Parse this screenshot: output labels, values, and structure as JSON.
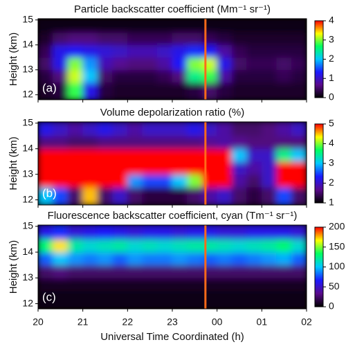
{
  "chart_data": [
    {
      "type": "heatmap",
      "title": "Particle backscatter coefficient (Mm⁻¹ sr⁻¹)",
      "label": "(a)",
      "ylabel": "Height (km)",
      "xlim": [
        20,
        26
      ],
      "ylim": [
        11.8,
        15.05
      ],
      "yticks": [
        12,
        13,
        14,
        15
      ],
      "xbins": [
        20,
        20.333,
        20.667,
        21,
        21.333,
        21.667,
        22,
        22.333,
        22.667,
        23,
        23.333,
        23.667,
        24,
        24.333,
        24.667,
        25,
        25.333,
        25.667,
        26
      ],
      "ybins": [
        12,
        12.5,
        13,
        13.5,
        14,
        14.5,
        15
      ],
      "z": [
        [
          0.2,
          0.3,
          2.8,
          1.2,
          0.3,
          0.2,
          0.2,
          0.2,
          0.2,
          0.2,
          0.3,
          0.5,
          0.3,
          0.2,
          0.2,
          0.2,
          0.2,
          0.2
        ],
        [
          0.3,
          0.6,
          3.2,
          2.0,
          0.5,
          0.3,
          0.3,
          0.3,
          0.4,
          0.6,
          2.5,
          2.8,
          0.8,
          0.3,
          0.3,
          0.3,
          0.4,
          0.3
        ],
        [
          0.5,
          1.2,
          3.0,
          1.8,
          0.9,
          0.7,
          0.6,
          0.6,
          0.8,
          1.3,
          3.0,
          3.2,
          1.2,
          0.5,
          0.4,
          0.4,
          0.5,
          0.4
        ],
        [
          0.4,
          1.2,
          1.3,
          1.2,
          1.1,
          1.0,
          0.9,
          0.9,
          1.0,
          1.2,
          1.4,
          1.3,
          0.8,
          0.4,
          0.3,
          0.3,
          0.3,
          0.3
        ],
        [
          0.2,
          0.5,
          0.6,
          0.6,
          0.5,
          0.5,
          0.4,
          0.4,
          0.4,
          0.5,
          0.5,
          0.4,
          0.3,
          0.2,
          0.2,
          0.2,
          0.2,
          0.2
        ],
        [
          0.1,
          0.1,
          0.1,
          0.1,
          0.1,
          0.1,
          0.1,
          0.1,
          0.1,
          0.1,
          0.1,
          0.1,
          0.1,
          0.1,
          0.1,
          0.1,
          0.1,
          0.1
        ]
      ],
      "zlim": [
        0,
        4
      ],
      "zticks": [
        0,
        1,
        2,
        3,
        4
      ],
      "colormap": [
        "#000000",
        "#5a0a8c",
        "#1a1aff",
        "#00c8ff",
        "#00ff60",
        "#ffff00",
        "#ff0000"
      ],
      "vline": 23.74,
      "vline_color": "#ff6a1a"
    },
    {
      "type": "heatmap",
      "title": "Volume depolarization ratio (%)",
      "label": "(b)",
      "ylabel": "Height (km)",
      "xlim": [
        20,
        26
      ],
      "ylim": [
        11.8,
        15.05
      ],
      "yticks": [
        12,
        13,
        14,
        15
      ],
      "xbins": [
        20,
        20.333,
        20.667,
        21,
        21.333,
        21.667,
        22,
        22.333,
        22.667,
        23,
        23.333,
        23.667,
        24,
        24.333,
        24.667,
        25,
        25.333,
        25.667,
        26
      ],
      "ybins": [
        12,
        12.5,
        13,
        13.5,
        14,
        14.5,
        15
      ],
      "z": [
        [
          3,
          2.5,
          1.5,
          4.5,
          1.5,
          2,
          1.5,
          1.3,
          1.3,
          1.3,
          1.5,
          1.8,
          2.0,
          1.5,
          1.3,
          1.5,
          2.5,
          1.5
        ],
        [
          5,
          5,
          5,
          5,
          5,
          5,
          2.8,
          2.5,
          2.5,
          3,
          4,
          5,
          5,
          1.8,
          1.5,
          2,
          5,
          5
        ],
        [
          5,
          5,
          5,
          5,
          5,
          5,
          5,
          5,
          5,
          5,
          5,
          5,
          5,
          2,
          1.8,
          2,
          5,
          5
        ],
        [
          5,
          5,
          5,
          5,
          5,
          5,
          5,
          5,
          5,
          5,
          5,
          5,
          5,
          3,
          2,
          2,
          3.5,
          3
        ],
        [
          1.6,
          1.6,
          1.5,
          1.5,
          1.6,
          1.6,
          1.6,
          1.6,
          1.6,
          1.6,
          1.6,
          1.7,
          1.8,
          1.7,
          1.6,
          1.6,
          1.6,
          1.6
        ],
        [
          2.2,
          2.0,
          1.8,
          2.0,
          2.2,
          2.0,
          1.8,
          2.0,
          2.0,
          2.0,
          2.2,
          2.0,
          1.8,
          1.5,
          1.5,
          1.6,
          1.8,
          2.0
        ]
      ],
      "zlim": [
        1,
        5
      ],
      "zticks": [
        1,
        2,
        3,
        4,
        5
      ],
      "colormap": [
        "#000000",
        "#5a0a8c",
        "#1a1aff",
        "#00c8ff",
        "#00ff60",
        "#ffff00",
        "#ff0000"
      ],
      "vline": 23.74,
      "vline_color": "#ff6a1a"
    },
    {
      "type": "heatmap",
      "title": "Fluorescence backscatter coefficient, cyan (Tm⁻¹ sr⁻¹)",
      "label": "(c)",
      "ylabel": "Height (km)",
      "xlabel": "Universal Time Coordinated (h)",
      "xlim": [
        20,
        26
      ],
      "xticks": [
        20,
        21,
        22,
        23,
        {
          "value": 24,
          "label": "00"
        },
        {
          "value": 25,
          "label": "01"
        },
        {
          "value": 26,
          "label": "02"
        }
      ],
      "ylim": [
        11.8,
        15.05
      ],
      "yticks": [
        12,
        13,
        14,
        15
      ],
      "xbins": [
        20,
        20.333,
        20.667,
        21,
        21.333,
        21.667,
        22,
        22.333,
        22.667,
        23,
        23.333,
        23.667,
        24,
        24.333,
        24.667,
        25,
        25.333,
        25.667,
        26
      ],
      "ybins": [
        12,
        12.5,
        13,
        13.5,
        14,
        14.5,
        15
      ],
      "z": [
        [
          5,
          5,
          5,
          5,
          5,
          5,
          5,
          5,
          5,
          5,
          5,
          5,
          5,
          5,
          5,
          5,
          5,
          5
        ],
        [
          8,
          8,
          8,
          8,
          8,
          8,
          8,
          8,
          8,
          8,
          8,
          8,
          8,
          8,
          8,
          8,
          8,
          8
        ],
        [
          25,
          30,
          25,
          25,
          25,
          25,
          25,
          25,
          25,
          25,
          25,
          25,
          25,
          25,
          25,
          25,
          25,
          25
        ],
        [
          80,
          100,
          90,
          85,
          90,
          80,
          90,
          85,
          85,
          90,
          85,
          80,
          85,
          80,
          85,
          90,
          95,
          80
        ],
        [
          130,
          170,
          120,
          110,
          115,
          120,
          110,
          115,
          110,
          115,
          120,
          120,
          115,
          110,
          115,
          120,
          130,
          110
        ],
        [
          60,
          70,
          55,
          60,
          65,
          60,
          55,
          60,
          60,
          55,
          60,
          60,
          55,
          55,
          60,
          60,
          60,
          55
        ]
      ],
      "zlim": [
        0,
        200
      ],
      "zticks": [
        0,
        50,
        100,
        150,
        200
      ],
      "colormap": [
        "#000000",
        "#5a0a8c",
        "#1a1aff",
        "#00c8ff",
        "#00ff60",
        "#ffff00",
        "#ff0000"
      ],
      "vline": 23.74,
      "vline_color": "#ff6a1a"
    }
  ]
}
